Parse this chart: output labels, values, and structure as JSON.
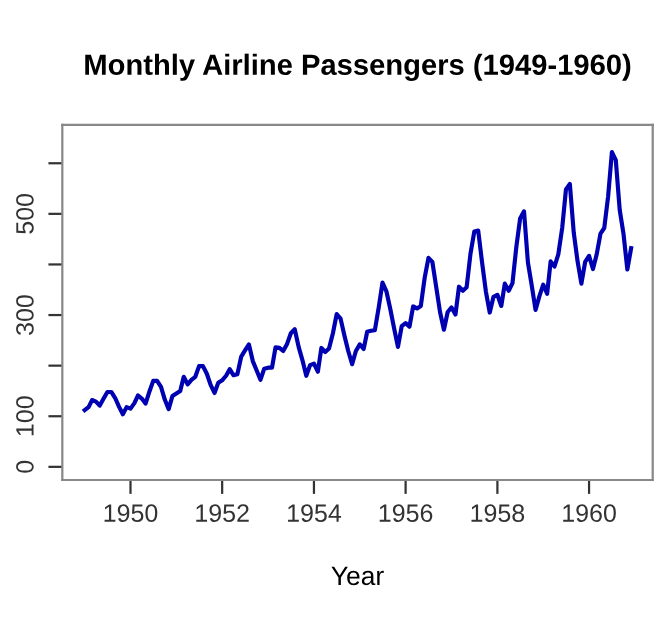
{
  "chart_data": {
    "type": "line",
    "title": "Monthly Airline Passengers (1949-1960)",
    "xlabel": "Year",
    "x": [
      "1949-01",
      "1949-02",
      "1949-03",
      "1949-04",
      "1949-05",
      "1949-06",
      "1949-07",
      "1949-08",
      "1949-09",
      "1949-10",
      "1949-11",
      "1949-12",
      "1950-01",
      "1950-02",
      "1950-03",
      "1950-04",
      "1950-05",
      "1950-06",
      "1950-07",
      "1950-08",
      "1950-09",
      "1950-10",
      "1950-11",
      "1950-12",
      "1951-01",
      "1951-02",
      "1951-03",
      "1951-04",
      "1951-05",
      "1951-06",
      "1951-07",
      "1951-08",
      "1951-09",
      "1951-10",
      "1951-11",
      "1951-12",
      "1952-01",
      "1952-02",
      "1952-03",
      "1952-04",
      "1952-05",
      "1952-06",
      "1952-07",
      "1952-08",
      "1952-09",
      "1952-10",
      "1952-11",
      "1952-12",
      "1953-01",
      "1953-02",
      "1953-03",
      "1953-04",
      "1953-05",
      "1953-06",
      "1953-07",
      "1953-08",
      "1953-09",
      "1953-10",
      "1953-11",
      "1953-12",
      "1954-01",
      "1954-02",
      "1954-03",
      "1954-04",
      "1954-05",
      "1954-06",
      "1954-07",
      "1954-08",
      "1954-09",
      "1954-10",
      "1954-11",
      "1954-12",
      "1955-01",
      "1955-02",
      "1955-03",
      "1955-04",
      "1955-05",
      "1955-06",
      "1955-07",
      "1955-08",
      "1955-09",
      "1955-10",
      "1955-11",
      "1955-12",
      "1956-01",
      "1956-02",
      "1956-03",
      "1956-04",
      "1956-05",
      "1956-06",
      "1956-07",
      "1956-08",
      "1956-09",
      "1956-10",
      "1956-11",
      "1956-12",
      "1957-01",
      "1957-02",
      "1957-03",
      "1957-04",
      "1957-05",
      "1957-06",
      "1957-07",
      "1957-08",
      "1957-09",
      "1957-10",
      "1957-11",
      "1957-12",
      "1958-01",
      "1958-02",
      "1958-03",
      "1958-04",
      "1958-05",
      "1958-06",
      "1958-07",
      "1958-08",
      "1958-09",
      "1958-10",
      "1958-11",
      "1958-12",
      "1959-01",
      "1959-02",
      "1959-03",
      "1959-04",
      "1959-05",
      "1959-06",
      "1959-07",
      "1959-08",
      "1959-09",
      "1959-10",
      "1959-11",
      "1959-12",
      "1960-01",
      "1960-02",
      "1960-03",
      "1960-04",
      "1960-05",
      "1960-06",
      "1960-07",
      "1960-08",
      "1960-09",
      "1960-10",
      "1960-11",
      "1960-12"
    ],
    "series": [
      {
        "color": "#0000b3",
        "values": [
          112,
          118,
          132,
          129,
          121,
          135,
          148,
          148,
          136,
          119,
          104,
          118,
          115,
          126,
          141,
          135,
          125,
          149,
          170,
          170,
          158,
          133,
          114,
          140,
          145,
          150,
          178,
          163,
          172,
          178,
          199,
          199,
          184,
          162,
          146,
          166,
          171,
          180,
          193,
          181,
          183,
          218,
          230,
          242,
          209,
          191,
          172,
          194,
          196,
          196,
          236,
          235,
          229,
          243,
          264,
          272,
          237,
          211,
          180,
          201,
          204,
          188,
          235,
          227,
          234,
          264,
          302,
          293,
          259,
          229,
          203,
          229,
          242,
          233,
          267,
          269,
          270,
          315,
          364,
          347,
          312,
          274,
          237,
          278,
          284,
          277,
          317,
          313,
          318,
          374,
          413,
          405,
          355,
          306,
          271,
          306,
          315,
          301,
          356,
          348,
          355,
          422,
          465,
          467,
          404,
          347,
          305,
          336,
          340,
          318,
          362,
          348,
          363,
          435,
          491,
          505,
          404,
          359,
          310,
          337,
          360,
          342,
          406,
          396,
          420,
          472,
          548,
          559,
          463,
          407,
          362,
          405,
          417,
          391,
          419,
          461,
          472,
          535,
          622,
          606,
          508,
          461,
          390,
          432
        ]
      }
    ],
    "xlim": [
      "1948-07-07",
      "1961-05-22"
    ],
    "xticks": [
      "1950",
      "1952",
      "1954",
      "1956",
      "1958",
      "1960"
    ],
    "ylim": [
      -26,
      676
    ],
    "yticks": [
      0,
      100,
      {
        "value": 200,
        "label": null
      },
      300,
      {
        "value": 400,
        "label": null
      },
      500,
      {
        "value": 600,
        "label": null
      }
    ],
    "grid": false,
    "legend": false,
    "marker": "none",
    "line_style": "solid"
  }
}
